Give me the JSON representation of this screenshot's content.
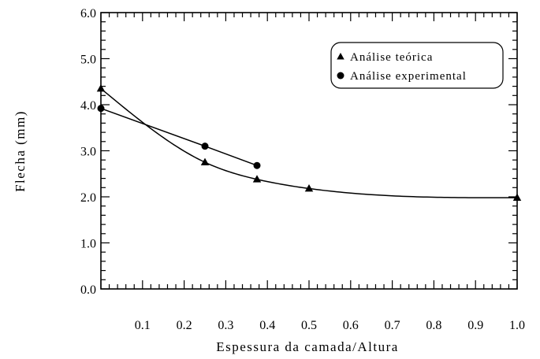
{
  "chart_data": {
    "type": "line",
    "title": "",
    "xlabel": "Espessura da camada/Altura",
    "ylabel": "Flecha (mm)",
    "xlim": [
      0,
      1.0
    ],
    "ylim": [
      0,
      6.0
    ],
    "x_ticks": [
      0.1,
      0.2,
      0.3,
      0.4,
      0.5,
      0.6,
      0.7,
      0.8,
      0.9,
      1.0
    ],
    "x_tick_labels": [
      "0.1",
      "0.2",
      "0.3",
      "0.4",
      "0.5",
      "0.6",
      "0.7",
      "0.8",
      "0.9",
      "1.0"
    ],
    "y_ticks": [
      0,
      1,
      2,
      3,
      4,
      5,
      6
    ],
    "y_tick_labels": [
      "0.0",
      "1.0",
      "2.0",
      "3.0",
      "4.0",
      "5.0",
      "6.0"
    ],
    "grid": false,
    "legend": {
      "position": "top-right",
      "framed": true
    },
    "series": [
      {
        "name": "Análise teórica",
        "marker": "triangle",
        "color": "#000000",
        "x": [
          0,
          0.25,
          0.375,
          0.5,
          1.0
        ],
        "y": [
          4.35,
          2.75,
          2.38,
          2.18,
          1.98
        ]
      },
      {
        "name": "Análise experimental",
        "marker": "circle",
        "color": "#000000",
        "x": [
          0,
          0.25,
          0.375
        ],
        "y": [
          3.92,
          3.1,
          2.68
        ]
      }
    ]
  }
}
